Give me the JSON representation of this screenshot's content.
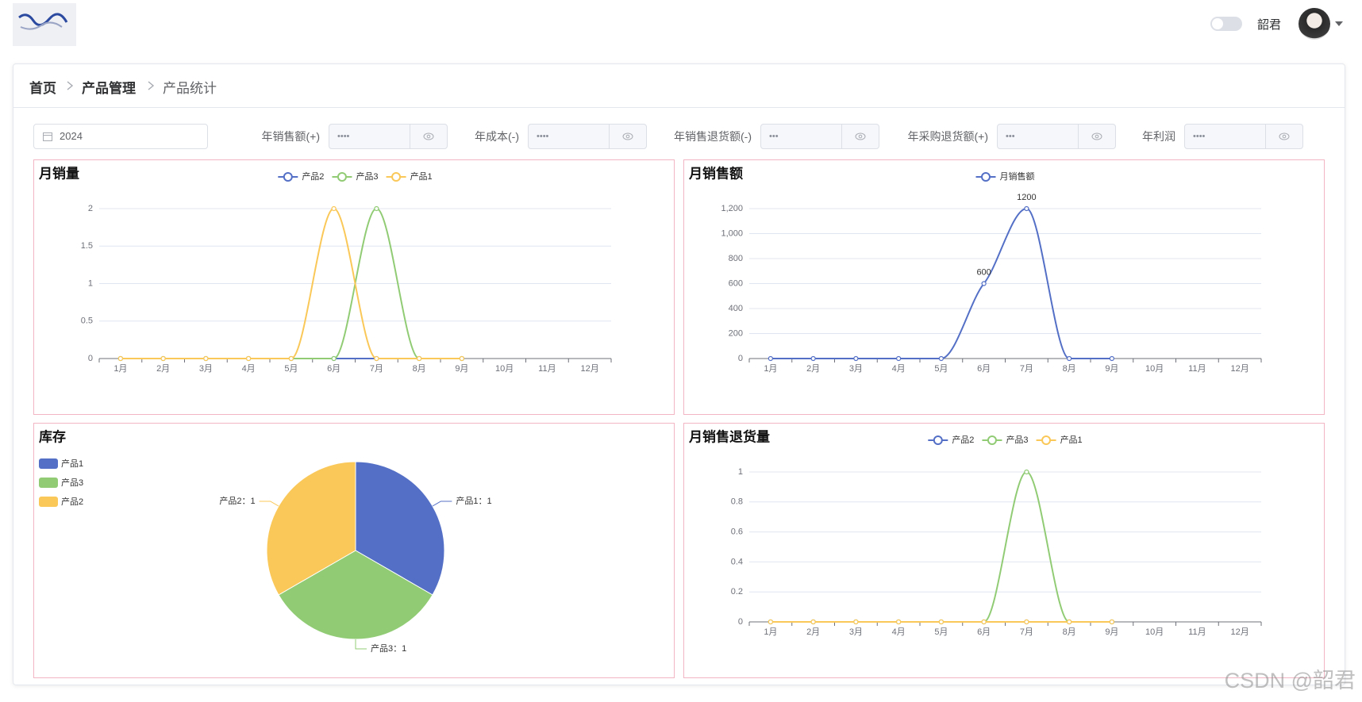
{
  "header": {
    "user_name": "韶君"
  },
  "breadcrumb": [
    "首页",
    "产品管理",
    "产品统计"
  ],
  "filters": {
    "year": "2024",
    "fields": [
      {
        "label": "年销售额(+)",
        "value": "••••"
      },
      {
        "label": "年成本(-)",
        "value": "••••"
      },
      {
        "label": "年销售退货额(-)",
        "value": "•••"
      },
      {
        "label": "年采购退货额(+)",
        "value": "•••"
      },
      {
        "label": "年利润",
        "value": "••••"
      }
    ]
  },
  "chart_data": [
    {
      "type": "line",
      "title": "月销量",
      "categories": [
        "1月",
        "2月",
        "3月",
        "4月",
        "5月",
        "6月",
        "7月",
        "8月",
        "9月",
        "10月",
        "11月",
        "12月"
      ],
      "series": [
        {
          "name": "产品2",
          "color": "#5470c6",
          "values": [
            0,
            0,
            0,
            0,
            0,
            0,
            0,
            0,
            0,
            null,
            null,
            null
          ]
        },
        {
          "name": "产品3",
          "color": "#91cc75",
          "values": [
            0,
            0,
            0,
            0,
            0,
            0,
            2,
            0,
            0,
            null,
            null,
            null
          ]
        },
        {
          "name": "产品1",
          "color": "#fac858",
          "values": [
            0,
            0,
            0,
            0,
            0,
            2,
            0,
            0,
            0,
            null,
            null,
            null
          ]
        }
      ],
      "ylim": [
        0,
        2
      ],
      "yticks": [
        0,
        0.5,
        1,
        1.5,
        2
      ],
      "grid": true,
      "smooth": true
    },
    {
      "type": "line",
      "title": "月销售额",
      "categories": [
        "1月",
        "2月",
        "3月",
        "4月",
        "5月",
        "6月",
        "7月",
        "8月",
        "9月",
        "10月",
        "11月",
        "12月"
      ],
      "series": [
        {
          "name": "月销售额",
          "color": "#5470c6",
          "values": [
            0,
            0,
            0,
            0,
            0,
            600,
            1200,
            0,
            0,
            null,
            null,
            null
          ]
        }
      ],
      "ylim": [
        0,
        1200
      ],
      "yticks": [
        0,
        200,
        400,
        600,
        800,
        {
          "value": 1000,
          "label": "1,000"
        },
        {
          "value": 1200,
          "label": "1,200"
        }
      ],
      "grid": true,
      "smooth": true,
      "data_labels": true
    },
    {
      "type": "pie",
      "title": "库存",
      "categories": [
        "产品1",
        "产品3",
        "产品2"
      ],
      "values": [
        1,
        1,
        1
      ],
      "value_labels": [
        "产品1：1",
        "产品3：1",
        "产品2：1"
      ],
      "colors": [
        "#5470c6",
        "#91cc75",
        "#fac858"
      ]
    },
    {
      "type": "line",
      "title": "月销售退货量",
      "categories": [
        "1月",
        "2月",
        "3月",
        "4月",
        "5月",
        "6月",
        "7月",
        "8月",
        "9月",
        "10月",
        "11月",
        "12月"
      ],
      "series": [
        {
          "name": "产品2",
          "color": "#5470c6",
          "values": [
            0,
            0,
            0,
            0,
            0,
            0,
            0,
            0,
            0,
            null,
            null,
            null
          ]
        },
        {
          "name": "产品3",
          "color": "#91cc75",
          "values": [
            0,
            0,
            0,
            0,
            0,
            0,
            1,
            0,
            0,
            null,
            null,
            null
          ]
        },
        {
          "name": "产品1",
          "color": "#fac858",
          "values": [
            0,
            0,
            0,
            0,
            0,
            0,
            0,
            0,
            0,
            null,
            null,
            null
          ]
        }
      ],
      "ylim": [
        0,
        1
      ],
      "yticks": [
        0,
        0.2,
        0.4,
        0.6,
        0.8,
        1
      ],
      "grid": true,
      "smooth": true
    }
  ],
  "watermark": "CSDN @韶君"
}
